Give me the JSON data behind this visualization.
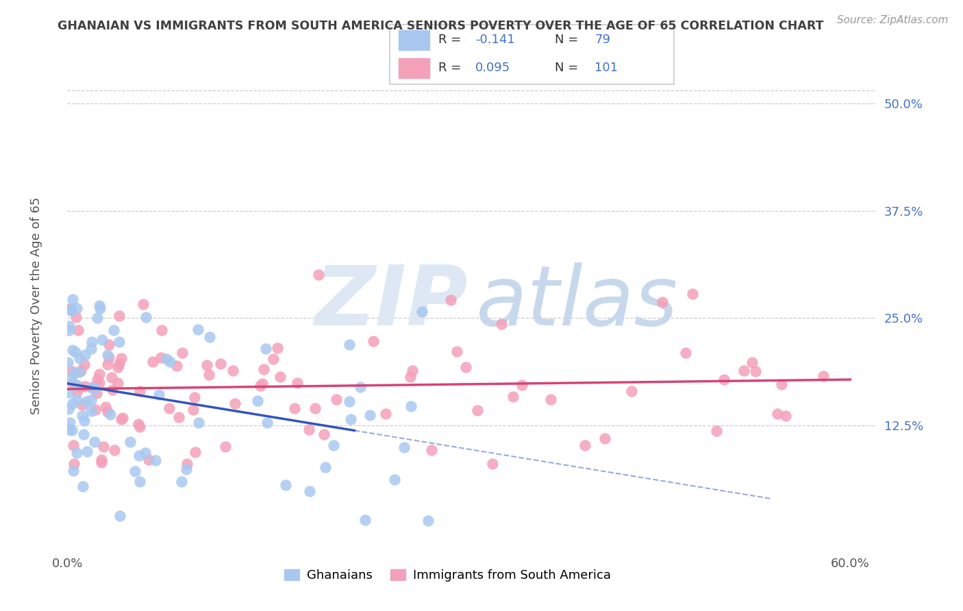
{
  "title": "GHANAIAN VS IMMIGRANTS FROM SOUTH AMERICA SENIORS POVERTY OVER THE AGE OF 65 CORRELATION CHART",
  "source_text": "Source: ZipAtlas.com",
  "ylabel": "Seniors Poverty Over the Age of 65",
  "xlim": [
    0.0,
    0.62
  ],
  "ylim": [
    -0.02,
    0.535
  ],
  "yticks_right": [
    0.125,
    0.25,
    0.375,
    0.5
  ],
  "ytick_right_labels": [
    "12.5%",
    "25.0%",
    "37.5%",
    "50.0%"
  ],
  "legend_R1": "-0.141",
  "legend_N1": "79",
  "legend_R2": "0.095",
  "legend_N2": "101",
  "color_blue": "#a8c8f0",
  "color_pink": "#f4a0b8",
  "color_blue_line": "#3355bb",
  "color_pink_line": "#d44477",
  "color_text_blue": "#4472c4",
  "background_color": "#ffffff",
  "title_color": "#404040",
  "source_color": "#999999",
  "axis_label_color": "#555555",
  "grid_color": "#cccccc"
}
